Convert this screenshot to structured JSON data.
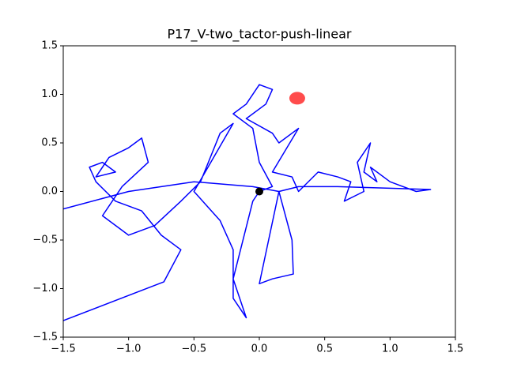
{
  "chart_data": {
    "type": "line",
    "title": "P17_V-two_tactor-push-linear",
    "xlim": [
      -1.5,
      1.5
    ],
    "ylim": [
      -1.5,
      1.5
    ],
    "xticks": [
      {
        "value": -1.5,
        "label": "−1.5"
      },
      {
        "value": -1.0,
        "label": "−1.0"
      },
      {
        "value": -0.5,
        "label": "−0.5"
      },
      {
        "value": 0,
        "label": "0.0"
      },
      {
        "value": 0.5,
        "label": "0.5"
      },
      {
        "value": 1.0,
        "label": "1.0"
      },
      {
        "value": 1.5,
        "label": "1.5"
      }
    ],
    "yticks": [
      {
        "value": -1.5,
        "label": "−1.5"
      },
      {
        "value": -1.0,
        "label": "−1.0"
      },
      {
        "value": -0.5,
        "label": "−0.5"
      },
      {
        "value": 0,
        "label": "0.0"
      },
      {
        "value": 0.5,
        "label": "0.5"
      },
      {
        "value": 1.0,
        "label": "1.0"
      },
      {
        "value": 1.5,
        "label": "1.5"
      }
    ],
    "series": [
      {
        "color": "#0000ff",
        "x": [
          -1.5,
          -0.73,
          -0.6,
          -0.75,
          -0.9,
          -1.1,
          -1.25,
          -1.3,
          -1.2,
          -1.1,
          -1.25,
          -1.15,
          -1.0,
          -0.9,
          -0.85,
          -1.05,
          -1.2,
          -1.0,
          -0.8,
          -0.6,
          -0.45,
          -0.3,
          -0.2,
          -0.35,
          -0.5,
          -0.3,
          -0.2,
          -0.2,
          -0.1,
          -0.2,
          -0.05,
          0.0,
          0.1,
          0.0,
          -0.05,
          -0.2,
          -0.1,
          0.0,
          0.1,
          0.05,
          -0.1,
          0.1,
          0.15,
          0.3,
          0.1,
          0.25,
          0.3,
          0.45,
          0.6,
          0.7,
          0.65,
          0.8,
          0.75,
          0.85,
          0.8,
          0.9,
          0.85,
          1.0,
          1.2,
          1.31,
          0.6,
          0.3,
          0.15,
          0.25,
          0.26,
          0.1,
          0.0,
          0.15,
          -0.05,
          -0.5,
          -1.0,
          -1.5
        ],
        "y": [
          -1.33,
          -0.93,
          -0.6,
          -0.45,
          -0.2,
          -0.1,
          0.1,
          0.25,
          0.3,
          0.2,
          0.15,
          0.35,
          0.45,
          0.55,
          0.3,
          0.05,
          -0.25,
          -0.45,
          -0.35,
          -0.1,
          0.1,
          0.6,
          0.7,
          0.35,
          0.0,
          -0.3,
          -0.6,
          -1.1,
          -1.3,
          -0.9,
          -0.1,
          0.0,
          0.05,
          0.3,
          0.65,
          0.8,
          0.9,
          1.1,
          1.05,
          0.9,
          0.75,
          0.6,
          0.5,
          0.65,
          0.2,
          0.15,
          0.0,
          0.2,
          0.15,
          0.1,
          -0.1,
          0.0,
          0.3,
          0.5,
          0.2,
          0.1,
          0.25,
          0.1,
          0.0,
          0.02,
          0.05,
          0.05,
          0.0,
          -0.5,
          -0.85,
          -0.9,
          -0.95,
          0.0,
          0.05,
          0.1,
          0.0,
          -0.18
        ]
      }
    ],
    "markers": [
      {
        "x": 0.29,
        "y": 0.96,
        "color": "#ff0000"
      },
      {
        "x": 0,
        "y": 0,
        "color": "#000000"
      }
    ]
  }
}
